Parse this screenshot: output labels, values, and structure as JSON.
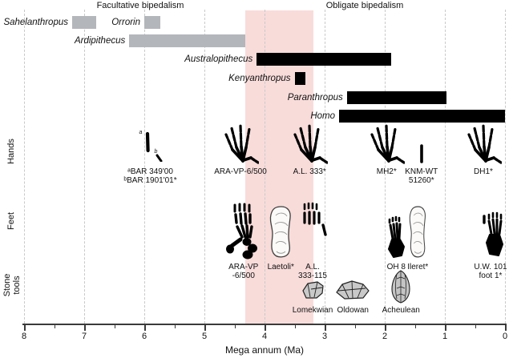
{
  "colors": {
    "facultative_bar": "#b3b6ba",
    "obligate_bar": "#000000",
    "highlight_band": "#f8dcda",
    "gridline": "#c9c9c9",
    "axis": "#3a3a3a",
    "text": "#111111",
    "stone_fill": "#c9c9c9",
    "footprint_fill": "#fbfaf8"
  },
  "chart_data": {
    "type": "bar",
    "title": "",
    "xlabel": "Mega annum (Ma)",
    "x_range": [
      8,
      0
    ],
    "x_ticks": [
      8,
      7,
      6,
      5,
      4,
      3,
      2,
      1,
      0
    ],
    "x_minor_tick_step": 0.5,
    "grid": "dashed-vertical",
    "row_labels": [
      "Hands",
      "Feet",
      "Stone tools"
    ],
    "sections": [
      {
        "label": "Facultative bipedalism",
        "bar_color": "#b3b6ba"
      },
      {
        "label": "Obligate bipedalism",
        "bar_color": "#000000"
      }
    ],
    "highlight_band": {
      "from_ma": 4.32,
      "to_ma": 3.19,
      "color": "#f8dcda"
    },
    "taxa_bars": [
      {
        "name": "Sahelanthropus",
        "from_ma": 7.2,
        "to_ma": 6.8,
        "section": 0,
        "row": 0
      },
      {
        "name": "Orrorin",
        "from_ma": 6.0,
        "to_ma": 5.73,
        "section": 0,
        "row": 0
      },
      {
        "name": "Ardipithecus",
        "from_ma": 6.25,
        "to_ma": 4.32,
        "section": 0,
        "row": 1
      },
      {
        "name": "Australopithecus",
        "from_ma": 4.13,
        "to_ma": 1.9,
        "section": 1,
        "row": 2
      },
      {
        "name": "Kenyanthropus",
        "from_ma": 3.5,
        "to_ma": 3.32,
        "section": 1,
        "row": 3
      },
      {
        "name": "Paranthropus",
        "from_ma": 2.63,
        "to_ma": 0.97,
        "section": 1,
        "row": 4
      },
      {
        "name": "Homo",
        "from_ma": 2.76,
        "to_ma": 0.0,
        "section": 1,
        "row": 5
      }
    ],
    "hands_specimens": [
      {
        "labels": [
          "ᵃBAR 349'00",
          "ᵇBAR 1901'01*"
        ],
        "ma": 5.9,
        "icon": "bone-fragments",
        "markers": [
          "a",
          "b"
        ]
      },
      {
        "labels": [
          "ARA-VP-6/500"
        ],
        "ma": 4.4,
        "icon": "hand"
      },
      {
        "labels": [
          "A.L. 333*"
        ],
        "ma": 3.25,
        "icon": "hand"
      },
      {
        "labels": [
          "MH2*"
        ],
        "ma": 1.97,
        "icon": "hand"
      },
      {
        "labels": [
          "KNM-WT",
          "51260*"
        ],
        "ma": 1.39,
        "icon": "bone"
      },
      {
        "labels": [
          "DH1*"
        ],
        "ma": 0.36,
        "icon": "hand"
      }
    ],
    "feet_specimens": [
      {
        "labels": [
          "ARA-VP",
          "-6/500"
        ],
        "ma": 4.35,
        "icon": "foot-bones"
      },
      {
        "labels": [
          "Laetoli*"
        ],
        "ma": 3.73,
        "icon": "footprint"
      },
      {
        "labels": [
          "A.L.",
          "333-115"
        ],
        "ma": 3.2,
        "icon": "toe-bones"
      },
      {
        "labels": [
          "OH 8"
        ],
        "ma": 1.81,
        "icon": "foot-black"
      },
      {
        "labels": [
          "Ileret*"
        ],
        "ma": 1.45,
        "icon": "footprint-narrow"
      },
      {
        "labels": [
          "U.W. 101",
          "foot 1*"
        ],
        "ma": 0.24,
        "icon": "foot-black-2"
      }
    ],
    "stone_tool_industries": [
      {
        "labels": [
          "Lomekwian"
        ],
        "ma": 3.2,
        "icon": "stone-lomekwian"
      },
      {
        "labels": [
          "Oldowan"
        ],
        "ma": 2.53,
        "icon": "stone-oldowan"
      },
      {
        "labels": [
          "Acheulean"
        ],
        "ma": 1.73,
        "icon": "stone-acheulean"
      }
    ]
  }
}
